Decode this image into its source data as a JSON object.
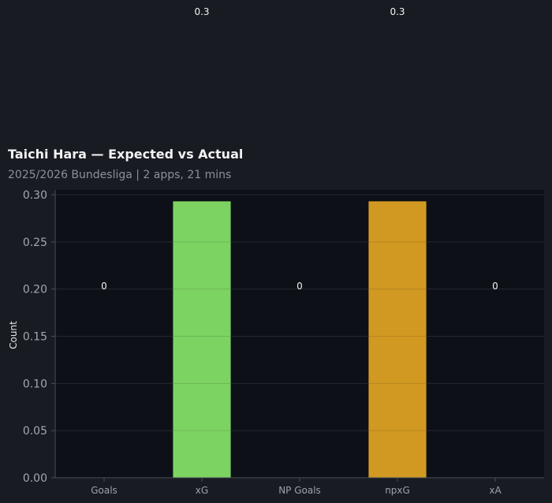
{
  "chart_data": {
    "type": "bar",
    "title": "Taichi Hara — Expected vs Actual",
    "subtitle": "2025/2026 Bundesliga | 2 apps, 21 mins",
    "ylabel": "Count",
    "xlabel": "",
    "categories": [
      "Goals",
      "xG",
      "NP Goals",
      "npxG",
      "xA"
    ],
    "values": [
      0,
      0.293,
      0,
      0.293,
      0
    ],
    "value_labels": [
      "0",
      "0.3",
      "0",
      "0.3",
      "0"
    ],
    "colors": [
      "#7dd362",
      "#7dd362",
      "#7dd362",
      "#d29922",
      "#7dd362"
    ],
    "ylim": [
      0,
      0.305
    ],
    "yticks": [
      0,
      0.05,
      0.1,
      0.15,
      0.2,
      0.25,
      0.3
    ],
    "ytick_labels": [
      "0.00",
      "0.05",
      "0.10",
      "0.15",
      "0.20",
      "0.25",
      "0.30"
    ],
    "grid": true,
    "legend": "none"
  },
  "colors": {
    "background": "#181b22",
    "plot_background": "#0d1017",
    "axis": "#4a4e57",
    "grid": "#2a2e36"
  }
}
